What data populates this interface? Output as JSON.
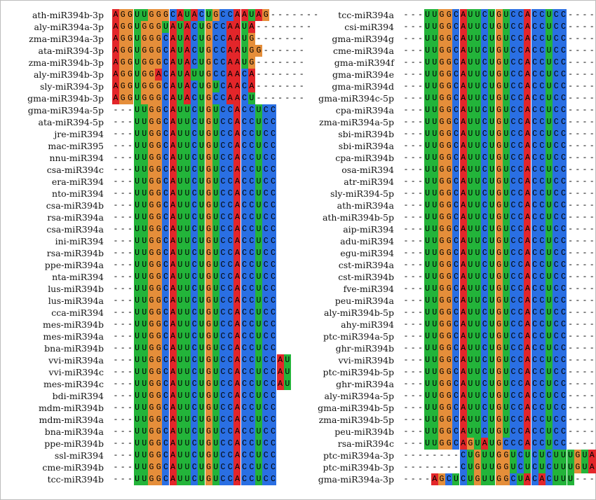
{
  "colors": {
    "A": "#e3262a",
    "G": "#e58e3a",
    "U": "#23b43a",
    "C": "#2a6fe3"
  },
  "panels": [
    {
      "rows": [
        {
          "name": "ath-miR394b-3p",
          "seq": "AGGUUGGGCAUACUGCCAAUAG-------"
        },
        {
          "name": "aly-miR394a-3p",
          "seq": "AGGUGGGUAUACUGCCAAUA--------"
        },
        {
          "name": "zma-miR394a-3p",
          "seq": "AGGUGGGCAUACUGCCAAUG-------"
        },
        {
          "name": "ata-miR394-3p",
          "seq": "AGGUGGGCAUACUGCCAAUGG------"
        },
        {
          "name": "zma-miR394b-3p",
          "seq": "AGGUGGGCAUACUGCCAAUG-------"
        },
        {
          "name": "aly-miR394b-3p",
          "seq": "AGGUGGACAUAUUGCCAACA-------"
        },
        {
          "name": "sly-miR394-3p",
          "seq": "AGGUGGGCAUACUGUCAACA-------"
        },
        {
          "name": "gma-miR394b-3p",
          "seq": "AGGUGGGCAUACUGCCAACU-------"
        },
        {
          "name": "gma-miR394a-5p",
          "seq": "---UUGGCAUUCUGUCCACCUCC"
        },
        {
          "name": "ata-miR394-5p",
          "seq": "---UUGGCAUUCUGUCCACCUCC"
        },
        {
          "name": "jre-miR394",
          "seq": "---UUGGCAUUCUGUCCACCUCC"
        },
        {
          "name": "mac-miR395",
          "seq": "---UUGGCAUUCUGUCCACCUCC"
        },
        {
          "name": "nnu-miR394",
          "seq": "---UUGGCAUUCUGUCCACCUCC"
        },
        {
          "name": "csa-miR394c",
          "seq": "---UUGGCAUUCUGUCCACCUCC"
        },
        {
          "name": "era-miR394",
          "seq": "---UUGGCAUUCUGUCCACCUCC"
        },
        {
          "name": "nto-miR394",
          "seq": "---UUGGCAUUCUGUCCACCUCC"
        },
        {
          "name": "csa-miR394b",
          "seq": "---UUGGCAUUCUGUCCACCUCC"
        },
        {
          "name": "rsa-miR394a",
          "seq": "---UUGGCAUUCUGUCCACCUCC"
        },
        {
          "name": "csa-miR394a",
          "seq": "---UUGGCAUUCUGUCCACCUCC"
        },
        {
          "name": "ini-miR394",
          "seq": "---UUGGCAUUCUGUCCACCUCC"
        },
        {
          "name": "rsa-miR394b",
          "seq": "---UUGGCAUUCUGUCCACCUCC"
        },
        {
          "name": "ppe-miR394a",
          "seq": "---UUGGCAUUCUGUCCACCUCC"
        },
        {
          "name": "nta-miR394",
          "seq": "---UUGGCAUUCUGUCCACCUCC"
        },
        {
          "name": "lus-miR394b",
          "seq": "---UUGGCAUUCUGUCCACCUCC"
        },
        {
          "name": "lus-miR394a",
          "seq": "---UUGGCAUUCUGUCCACCUCC"
        },
        {
          "name": "cca-miR394",
          "seq": "---UUGGCAUUCUGUCCACCUCC"
        },
        {
          "name": "mes-miR394b",
          "seq": "---UUGGCAUUCUGUCCACCUCC"
        },
        {
          "name": "mes-miR394a",
          "seq": "---UUGGCAUUCUGUCCACCUCC"
        },
        {
          "name": "bna-miR394b",
          "seq": "---UUGGCAUUCUGUCCACCUCC"
        },
        {
          "name": "vvi-miR394a",
          "seq": "---UUGGCAUUCUGUCCACCUCCAU"
        },
        {
          "name": "vvi-miR394c",
          "seq": "---UUGGCAUUCUGUCCACCUCCAU"
        },
        {
          "name": "mes-miR394c",
          "seq": "---UUGGCAUUCUGUCCACCUCCAU"
        },
        {
          "name": "bdi-miR394",
          "seq": "---UUGGCAUUCUGUCCACCUCC"
        },
        {
          "name": "mdm-miR394b",
          "seq": "---UUGGCAUUCUGUCCACCUCC"
        },
        {
          "name": "mdm-miR394a",
          "seq": "---UUGGCAUUCUGUCCACCUCC"
        },
        {
          "name": "bna-miR394a",
          "seq": "---UUGGCAUUCUGUCCACCUCC"
        },
        {
          "name": "ppe-miR394b",
          "seq": "---UUGGCAUUCUGUCCACCUCC"
        },
        {
          "name": "ssl-miR394",
          "seq": "---UUGGCAUUCUGUCCACCUCC"
        },
        {
          "name": "cme-miR394b",
          "seq": "---UUGGCAUUCUGUCCACCUCC"
        },
        {
          "name": "tcc-miR394b",
          "seq": "---UUGGCAUUCUGUCCACCUCC"
        }
      ]
    },
    {
      "rows": [
        {
          "name": "tcc-miR394a",
          "seq": "---UUGGCAUUCUGUCCACCUCC----"
        },
        {
          "name": "csi-miR394",
          "seq": "---UUGGCAUUCUGUCCACCUCC----"
        },
        {
          "name": "gma-miR394g",
          "seq": "---UUGGCAUUCUGUCCACCUCC----"
        },
        {
          "name": "cme-miR394a",
          "seq": "---UUGGCAUUCUGUCCACCUCC----"
        },
        {
          "name": "gma-miR394f",
          "seq": "---UUGGCAUUCUGUCCACCUCC----"
        },
        {
          "name": "gma-miR394e",
          "seq": "---UUGGCAUUCUGUCCACCUCC----"
        },
        {
          "name": "gma-miR394d",
          "seq": "---UUGGCAUUCUGUCCACCUCC----"
        },
        {
          "name": "gma-miR394c-5p",
          "seq": "---UUGGCAUUCUGUCCACCUCC----"
        },
        {
          "name": "cpa-miR394a",
          "seq": "---UUGGCAUUCUGUCCACCUCC----"
        },
        {
          "name": "zma-miR394a-5p",
          "seq": "---UUGGCAUUCUGUCCACCUCC----"
        },
        {
          "name": "sbi-miR394b",
          "seq": "---UUGGCAUUCUGUCCACCUCC----"
        },
        {
          "name": "sbi-miR394a",
          "seq": "---UUGGCAUUCUGUCCACCUCC----"
        },
        {
          "name": "cpa-miR394b",
          "seq": "---UUGGCAUUCUGUCCACCUCC----"
        },
        {
          "name": "osa-miR394",
          "seq": "---UUGGCAUUCUGUCCACCUCC----"
        },
        {
          "name": "atr-miR394",
          "seq": "---UUGGCAUUCUGUCCACCUCC----"
        },
        {
          "name": "sly-miR394-5p",
          "seq": "---UUGGCAUUCUGUCCACCUCC----"
        },
        {
          "name": "ath-miR394a",
          "seq": "---UUGGCAUUCUGUCCACCUCC----"
        },
        {
          "name": "ath-miR394b-5p",
          "seq": "---UUGGCAUUCUGUCCACCUCC----"
        },
        {
          "name": "aip-miR394",
          "seq": "---UUGGCAUUCUGUCCACCUCC----"
        },
        {
          "name": "adu-miR394",
          "seq": "---UUGGCAUUCUGUCCACCUCC----"
        },
        {
          "name": "egu-miR394",
          "seq": "---UUGGCAUUCUGUCCACCUCC----"
        },
        {
          "name": "cst-miR394a",
          "seq": "---UUGGCAUUCUGUCCACCUCC----"
        },
        {
          "name": "cst-miR394b",
          "seq": "---UUGGCAUUCUGUCCACCUCC----"
        },
        {
          "name": "fve-miR394",
          "seq": "---UUGGCAUUCUGUCCACCUCC----"
        },
        {
          "name": "peu-miR394a",
          "seq": "---UUGGCAUUCUGUCCACCUCC----"
        },
        {
          "name": "aly-miR394b-5p",
          "seq": "---UUGGCAUUCUGUCCACCUCC----"
        },
        {
          "name": "ahy-miR394",
          "seq": "---UUGGCAUUCUGUCCACCUCC----"
        },
        {
          "name": "ptc-miR394a-5p",
          "seq": "---UUGGCAUUCUGUCCACCUCC----"
        },
        {
          "name": "ghr-miR394b",
          "seq": "---UUGGCAUUCUGUCCACCUCC----"
        },
        {
          "name": "vvi-miR394b",
          "seq": "---UUGGCAUUCUGUCCACCUCC----"
        },
        {
          "name": "ptc-miR394b-5p",
          "seq": "---UUGGCAUUCUGUCCACCUCC----"
        },
        {
          "name": "ghr-miR394a",
          "seq": "---UUGGCAUUCUGUCCACCUCC----"
        },
        {
          "name": "aly-miR394a-5p",
          "seq": "---UUGGCAUUCUGUCCACCUCC----"
        },
        {
          "name": "gma-miR394b-5p",
          "seq": "---UUGGCAUUCUGUCCACCUCC----"
        },
        {
          "name": "zma-miR394b-5p",
          "seq": "---UUGGCAUUCUGUCCACCUCC----"
        },
        {
          "name": "peu-miR394b",
          "seq": "---UUGGCAUUCUGUCCACCUCC----"
        },
        {
          "name": "rsa-miR394c",
          "seq": "---UUGGCAGUAUGCCCACCUCC----"
        },
        {
          "name": "ptc-miR394a-3p",
          "seq": "--------CUGUUGGUCUCUCUUUGUAA"
        },
        {
          "name": "ptc-miR394b-3p",
          "seq": "--------CUGUUGGUCUCUCUUUGUAA"
        },
        {
          "name": "gma-miR394a-3p",
          "seq": "----AGCUCUGUUGGCUACACUUU----"
        }
      ]
    }
  ]
}
